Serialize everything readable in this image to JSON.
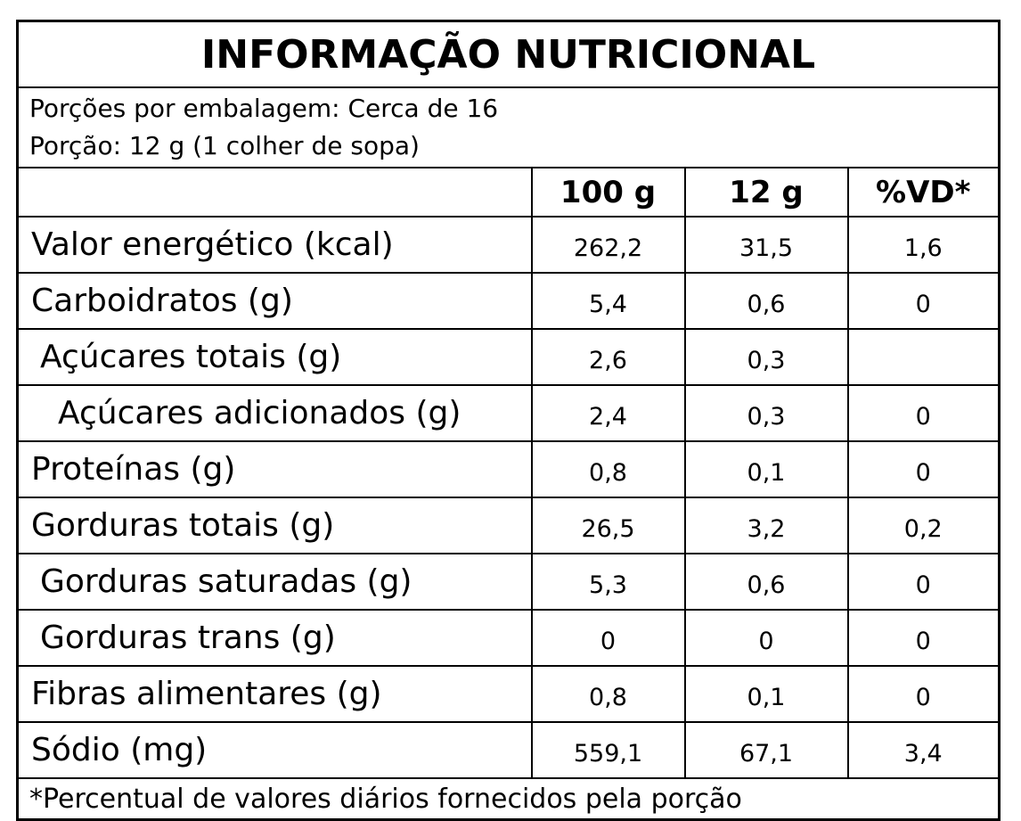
{
  "title": "INFORMAÇÃO NUTRICIONAL",
  "servings": [
    "Porções por embalagem: Cerca de 16",
    "Porção: 12 g (1 colher de sopa)"
  ],
  "columns": [
    "100 g",
    "12 g",
    "%VD*"
  ],
  "rows": [
    {
      "label": "Valor energético (kcal)",
      "values": [
        "262,2",
        "31,5",
        "1,6"
      ]
    },
    {
      "label": "Carboidratos (g)",
      "values": [
        "5,4",
        "0,6",
        "0"
      ]
    },
    {
      "label": "Açúcares totais (g)",
      "values": [
        "2,6",
        "0,3"
      ]
    },
    {
      "label": "Açúcares adicionados (g)",
      "values": [
        "2,4",
        "0,3",
        "0"
      ]
    },
    {
      "label": "Proteínas (g)",
      "values": [
        "0,8",
        "0,1",
        "0"
      ]
    },
    {
      "label": "Gorduras totais (g)",
      "values": [
        "26,5",
        "3,2",
        "0,2"
      ]
    },
    {
      "label": "Gorduras saturadas (g)",
      "values": [
        "5,3",
        "0,6",
        "0"
      ]
    },
    {
      "label": "Gorduras trans (g)",
      "values": [
        "0",
        "0",
        "0"
      ]
    },
    {
      "label": "Fibras alimentares (g)",
      "values": [
        "0,8",
        "0,1",
        "0"
      ]
    },
    {
      "label": "Sódio (mg)",
      "values": [
        "559,1",
        "67,1",
        "3,4"
      ]
    }
  ],
  "footnote": "*Percentual de valores diários fornecidos pela porção"
}
